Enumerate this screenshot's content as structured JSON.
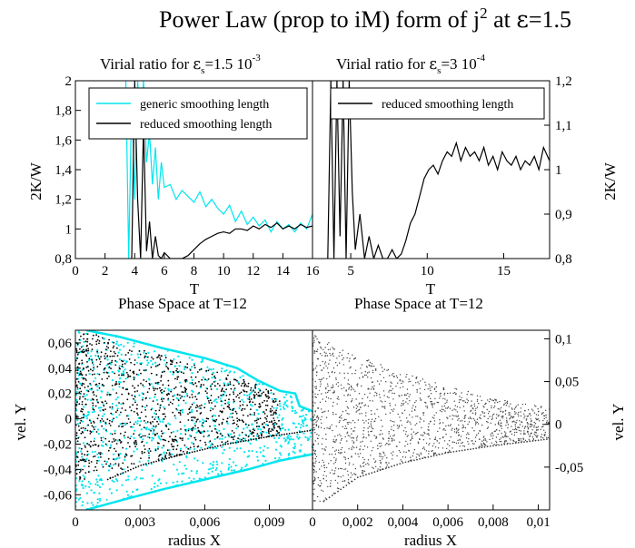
{
  "figure": {
    "title_main": "Power Law (prop to iM) form of j",
    "title_sup": "2",
    "title_tail": " at ",
    "title_eps": "ε",
    "title_value": "=1.5"
  },
  "chart_data": [
    {
      "id": "virial-left",
      "type": "line",
      "title_prefix": "Virial ratio for ",
      "title_eps": "ε",
      "title_sub": "s",
      "title_value": "=1.5 10",
      "title_exp": "-3",
      "xlabel": "T",
      "ylabel": "2K/W",
      "xlim": [
        0,
        16
      ],
      "ylim": [
        0.8,
        2.0
      ],
      "xticks": [
        "0",
        "2",
        "4",
        "6",
        "8",
        "10",
        "12",
        "14",
        "16"
      ],
      "yticks": [
        "0,8",
        "1",
        "1,2",
        "1,4",
        "1,6",
        "1,8",
        "2"
      ],
      "legend_position": "top-right",
      "series": [
        {
          "name": "generic smoothing length",
          "color": "#00e5ee",
          "x": [
            3.4,
            3.6,
            3.8,
            4.0,
            4.2,
            4.4,
            4.6,
            4.8,
            5.0,
            5.2,
            5.4,
            5.6,
            5.8,
            6.0,
            6.4,
            6.8,
            7.2,
            7.6,
            8.0,
            8.4,
            8.8,
            9.2,
            9.6,
            10.0,
            10.4,
            10.8,
            11.2,
            11.6,
            12.0,
            12.4,
            12.8,
            13.2,
            13.6,
            14.0,
            14.4,
            14.8,
            15.2,
            15.6,
            16.0
          ],
          "y": [
            2.0,
            0.8,
            1.9,
            1.2,
            2.0,
            1.7,
            2.0,
            1.45,
            1.65,
            1.3,
            1.55,
            1.2,
            1.45,
            1.28,
            1.3,
            1.2,
            1.26,
            1.22,
            1.18,
            1.25,
            1.15,
            1.2,
            1.14,
            1.1,
            1.16,
            1.05,
            1.12,
            1.03,
            1.08,
            1.02,
            1.06,
            0.98,
            1.05,
            1.0,
            1.03,
            0.98,
            1.04,
            1.0,
            1.1
          ]
        },
        {
          "name": "reduced smoothing length",
          "color": "#000000",
          "x": [
            3.8,
            4.0,
            4.2,
            4.4,
            4.6,
            4.8,
            5.0,
            5.2,
            5.4,
            5.6,
            5.8,
            6.0,
            6.4,
            6.8,
            7.2,
            7.6,
            8.0,
            8.4,
            8.8,
            9.2,
            9.6,
            10.0,
            10.4,
            10.8,
            11.2,
            11.6,
            12.0,
            12.4,
            12.8,
            13.2,
            13.6,
            14.0,
            14.4,
            14.8,
            15.2,
            15.6,
            16.0
          ],
          "y": [
            0.8,
            2.0,
            1.2,
            0.8,
            1.7,
            0.85,
            1.05,
            0.8,
            0.95,
            0.82,
            0.8,
            0.84,
            0.8,
            0.8,
            0.8,
            0.82,
            0.86,
            0.9,
            0.93,
            0.95,
            0.97,
            0.98,
            0.97,
            1.0,
            1.0,
            0.99,
            1.02,
            1.0,
            1.03,
            1.01,
            1.04,
            1.0,
            1.02,
            1.0,
            1.03,
            1.01,
            1.02
          ]
        }
      ]
    },
    {
      "id": "virial-right",
      "type": "line",
      "title_prefix": "Virial ratio for ",
      "title_eps": "ε",
      "title_sub": "s",
      "title_value": "=3 10",
      "title_exp": "-4",
      "xlabel": "T",
      "ylabel": "2K/W",
      "xlim": [
        2.5,
        18
      ],
      "ylim": [
        0.8,
        1.2
      ],
      "xticks": [
        "5",
        "10",
        "15"
      ],
      "yticks": [
        "0,8",
        "0,9",
        "1",
        "1,1",
        "1,2"
      ],
      "legend_position": "top-right",
      "series": [
        {
          "name": "reduced smoothing length",
          "color": "#000000",
          "x": [
            3.5,
            3.7,
            3.9,
            4.1,
            4.3,
            4.5,
            4.7,
            4.9,
            5.1,
            5.3,
            5.6,
            5.9,
            6.2,
            6.5,
            6.8,
            7.1,
            7.4,
            7.7,
            8.0,
            8.3,
            8.6,
            8.9,
            9.2,
            9.5,
            9.8,
            10.1,
            10.4,
            10.7,
            11.0,
            11.3,
            11.6,
            11.9,
            12.2,
            12.5,
            12.8,
            13.1,
            13.4,
            13.7,
            14.0,
            14.3,
            14.6,
            14.9,
            15.2,
            15.5,
            15.8,
            16.1,
            16.4,
            16.7,
            17.0,
            17.3,
            17.6,
            18.0
          ],
          "y": [
            0.8,
            1.2,
            0.8,
            1.2,
            0.85,
            1.2,
            0.8,
            1.2,
            0.95,
            0.82,
            0.9,
            0.8,
            0.85,
            0.8,
            0.83,
            0.8,
            0.8,
            0.82,
            0.8,
            0.81,
            0.84,
            0.88,
            0.9,
            0.94,
            0.98,
            1.0,
            1.01,
            0.99,
            1.02,
            1.04,
            1.03,
            1.06,
            1.02,
            1.05,
            1.03,
            1.04,
            1.02,
            1.05,
            1.01,
            1.03,
            1.0,
            1.04,
            1.02,
            1.01,
            1.03,
            1.0,
            1.02,
            1.01,
            1.03,
            1.0,
            1.05,
            1.02
          ]
        }
      ]
    },
    {
      "id": "phase-left",
      "type": "scatter",
      "title": "Phase Space at T=12",
      "xlabel": "radius X",
      "ylabel": "vel. Y",
      "xlim": [
        0,
        0.011
      ],
      "ylim": [
        -0.072,
        0.07
      ],
      "xticks": [
        "0",
        "0,003",
        "0,006",
        "0,009"
      ],
      "yticks": [
        "-0,06",
        "-0,04",
        "-0,02",
        "0",
        "0,02",
        "0,04",
        "0,06"
      ],
      "series": [
        {
          "name": "",
          "color": "#00e5ee",
          "envelope_upper": [
            [
              0.0005,
              0.07
            ],
            [
              0.002,
              0.065
            ],
            [
              0.004,
              0.056
            ],
            [
              0.006,
              0.048
            ],
            [
              0.0075,
              0.04
            ],
            [
              0.0085,
              0.03
            ],
            [
              0.0095,
              0.022
            ],
            [
              0.0102,
              0.02
            ],
            [
              0.0104,
              0.01
            ],
            [
              0.011,
              0.006
            ]
          ],
          "envelope_lower": [
            [
              0.0005,
              -0.072
            ],
            [
              0.002,
              -0.065
            ],
            [
              0.004,
              -0.056
            ],
            [
              0.006,
              -0.048
            ],
            [
              0.008,
              -0.04
            ],
            [
              0.0095,
              -0.033
            ],
            [
              0.011,
              -0.028
            ]
          ]
        },
        {
          "name": "",
          "color": "#000000",
          "envelope_upper": [
            [
              0.0005,
              0.07
            ],
            [
              0.002,
              0.06
            ],
            [
              0.004,
              0.05
            ],
            [
              0.006,
              0.04
            ],
            [
              0.008,
              0.03
            ],
            [
              0.0095,
              0.02
            ]
          ],
          "lower_curve": [
            [
              0.0015,
              -0.048
            ],
            [
              0.003,
              -0.037
            ],
            [
              0.005,
              -0.028
            ],
            [
              0.007,
              -0.02
            ],
            [
              0.009,
              -0.014
            ],
            [
              0.011,
              -0.009
            ]
          ]
        }
      ]
    },
    {
      "id": "phase-right",
      "type": "scatter",
      "title": "Phase Space at T=12",
      "xlabel": "radius X",
      "ylabel": "vel. Y",
      "xlim": [
        0,
        0.0105
      ],
      "ylim": [
        -0.1,
        0.11
      ],
      "xticks": [
        "0",
        "0,002",
        "0,004",
        "0,006",
        "0,008",
        "0,01"
      ],
      "yticks": [
        "-0,05",
        "0",
        "0,05",
        "0,1"
      ],
      "series": [
        {
          "name": "",
          "color": "#444444",
          "envelope_upper": [
            [
              0.0,
              0.105
            ],
            [
              0.002,
              0.08
            ],
            [
              0.004,
              0.06
            ],
            [
              0.006,
              0.045
            ],
            [
              0.008,
              0.03
            ],
            [
              0.0105,
              0.02
            ]
          ],
          "lower_curve": [
            [
              0.0005,
              -0.09
            ],
            [
              0.002,
              -0.062
            ],
            [
              0.004,
              -0.045
            ],
            [
              0.006,
              -0.033
            ],
            [
              0.008,
              -0.025
            ],
            [
              0.0105,
              -0.017
            ]
          ]
        }
      ]
    }
  ]
}
